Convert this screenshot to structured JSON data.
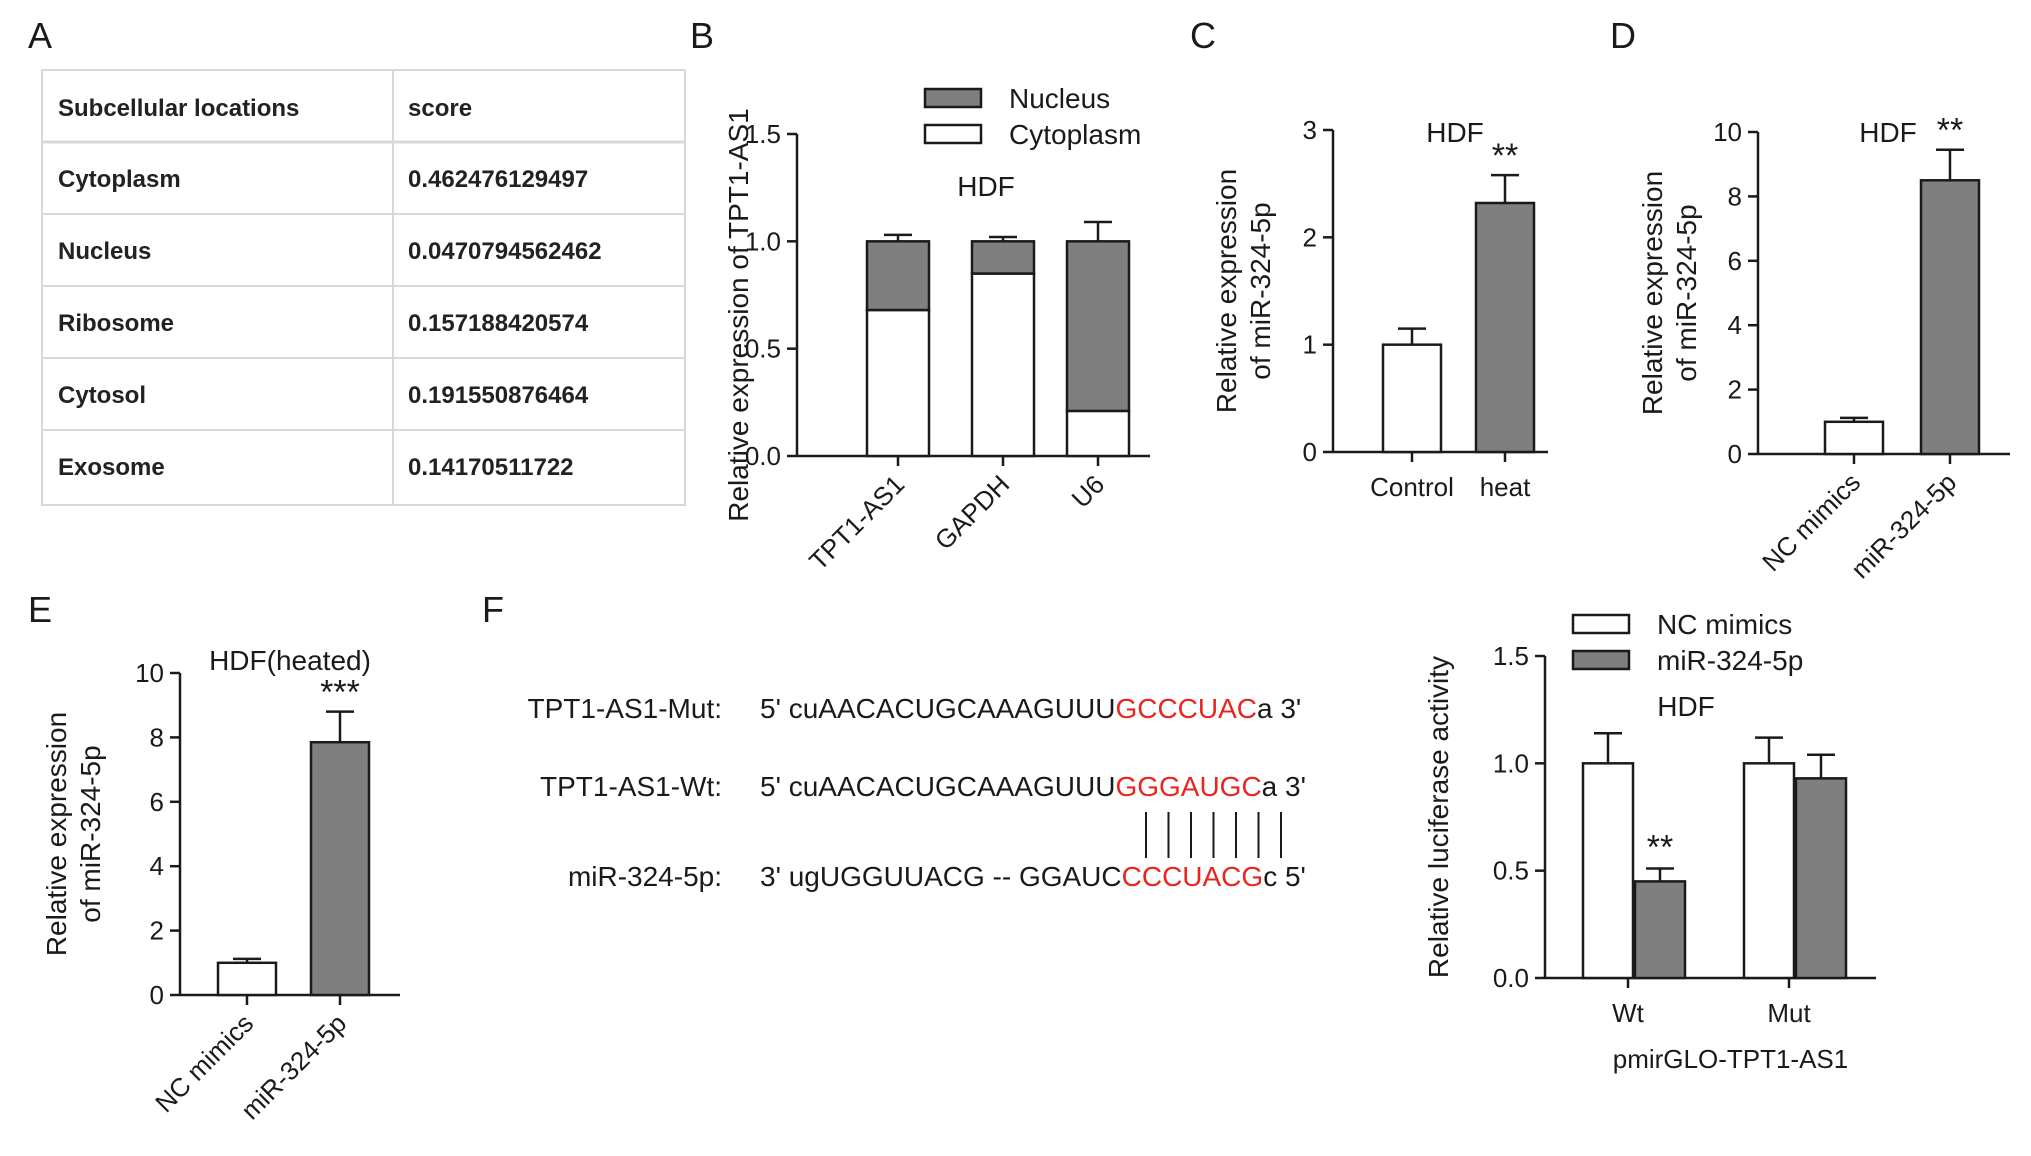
{
  "colors": {
    "gray_bar": "#7f7f7f",
    "white_bar": "#ffffff",
    "axis": "#1a1a1a",
    "highlight": "#e8251f",
    "table_border": "#d8d8d8"
  },
  "panels": {
    "A": {
      "letter": "A"
    },
    "B": {
      "letter": "B"
    },
    "C": {
      "letter": "C"
    },
    "D": {
      "letter": "D"
    },
    "E": {
      "letter": "E"
    },
    "F": {
      "letter": "F"
    }
  },
  "table": {
    "header": [
      "Subcellular locations",
      "score"
    ],
    "rows": [
      [
        "Cytoplasm",
        "0.462476129497"
      ],
      [
        "Nucleus",
        "0.0470794562462"
      ],
      [
        "Ribosome",
        "0.157188420574"
      ],
      [
        "Cytosol",
        "0.191550876464"
      ],
      [
        "Exosome",
        "0.14170511722"
      ]
    ]
  },
  "sequences": {
    "rows": [
      {
        "label": "TPT1-AS1-Mut:",
        "prefix": "5' cuAACACUGCAAAGUUU",
        "highlight": "GCCCUAC",
        "suffix": "a 3'"
      },
      {
        "label": "TPT1-AS1-Wt:",
        "prefix": "5' cuAACACUGCAAAGUUU",
        "highlight": "GGGAUGC",
        "suffix": "a 3'"
      },
      {
        "label": "miR-324-5p:",
        "prefix": "3' ugUGGUUACG -- GGAUC",
        "highlight": "CCCUACG",
        "suffix": "c 5'"
      }
    ],
    "pair_count": 7
  },
  "chart_data": [
    {
      "id": "B",
      "type": "bar",
      "stacked": true,
      "title": "HDF",
      "ylabel": "Relative expression of TPT1-AS1",
      "xlabel": "",
      "ylim": [
        0,
        1.5
      ],
      "yticks": [
        0.0,
        0.5,
        1.0,
        1.5
      ],
      "ytick_labels": [
        "0.0",
        "0.5",
        "1.0",
        "1.5"
      ],
      "categories": [
        "TPT1-AS1",
        "GAPDH",
        "U6"
      ],
      "series": [
        {
          "name": "Cytoplasm",
          "values": [
            0.68,
            0.85,
            0.21
          ],
          "errors": [
            0.06,
            0.09,
            0.02
          ],
          "color": "#ffffff"
        },
        {
          "name": "Nucleus",
          "values": [
            0.32,
            0.15,
            0.79
          ],
          "errors": [
            0.03,
            0.02,
            0.09
          ],
          "color": "#7f7f7f"
        }
      ],
      "legend_position": "top-right"
    },
    {
      "id": "C",
      "type": "bar",
      "title": "HDF",
      "ylabel": "Relative expression of miR-324-5p",
      "xlabel": "",
      "ylim": [
        0,
        3
      ],
      "yticks": [
        0,
        1,
        2,
        3
      ],
      "ytick_labels": [
        "0",
        "1",
        "2",
        "3"
      ],
      "categories": [
        "Control",
        "heat"
      ],
      "values": [
        1.0,
        2.32
      ],
      "errors": [
        0.15,
        0.26
      ],
      "colors": [
        "#ffffff",
        "#7f7f7f"
      ],
      "significance": [
        "",
        "**"
      ]
    },
    {
      "id": "D",
      "type": "bar",
      "title": "HDF",
      "ylabel": "Relative expression of miR-324-5p",
      "xlabel": "",
      "ylim": [
        0,
        10
      ],
      "yticks": [
        0,
        2,
        4,
        6,
        8,
        10
      ],
      "ytick_labels": [
        "0",
        "2",
        "4",
        "6",
        "8",
        "10"
      ],
      "categories": [
        "NC mimics",
        "miR-324-5p"
      ],
      "values": [
        1.0,
        8.5
      ],
      "errors": [
        0.12,
        0.95
      ],
      "colors": [
        "#ffffff",
        "#7f7f7f"
      ],
      "significance": [
        "",
        "**"
      ]
    },
    {
      "id": "E",
      "type": "bar",
      "title": "HDF(heated)",
      "ylabel": "Relative expression of miR-324-5p",
      "xlabel": "",
      "ylim": [
        0,
        10
      ],
      "yticks": [
        0,
        2,
        4,
        6,
        8,
        10
      ],
      "ytick_labels": [
        "0",
        "2",
        "4",
        "6",
        "8",
        "10"
      ],
      "categories": [
        "NC mimics",
        "miR-324-5p"
      ],
      "values": [
        1.0,
        7.85
      ],
      "errors": [
        0.12,
        0.95
      ],
      "colors": [
        "#ffffff",
        "#7f7f7f"
      ],
      "significance": [
        "",
        "***"
      ]
    },
    {
      "id": "F",
      "type": "bar",
      "title": "HDF",
      "ylabel": "Relative luciferase activity",
      "xlabel": "pmirGLO-TPT1-AS1",
      "ylim": [
        0,
        1.5
      ],
      "yticks": [
        0.0,
        0.5,
        1.0,
        1.5
      ],
      "ytick_labels": [
        "0.0",
        "0.5",
        "1.0",
        "1.5"
      ],
      "categories": [
        "Wt",
        "Mut"
      ],
      "series": [
        {
          "name": "NC mimics",
          "values": [
            1.0,
            1.0
          ],
          "errors": [
            0.14,
            0.12
          ],
          "color": "#ffffff"
        },
        {
          "name": "miR-324-5p",
          "values": [
            0.45,
            0.93
          ],
          "errors": [
            0.06,
            0.11
          ],
          "color": "#7f7f7f"
        }
      ],
      "significance": {
        "miR-324-5p": [
          "**",
          ""
        ]
      },
      "legend_position": "top-left"
    }
  ]
}
